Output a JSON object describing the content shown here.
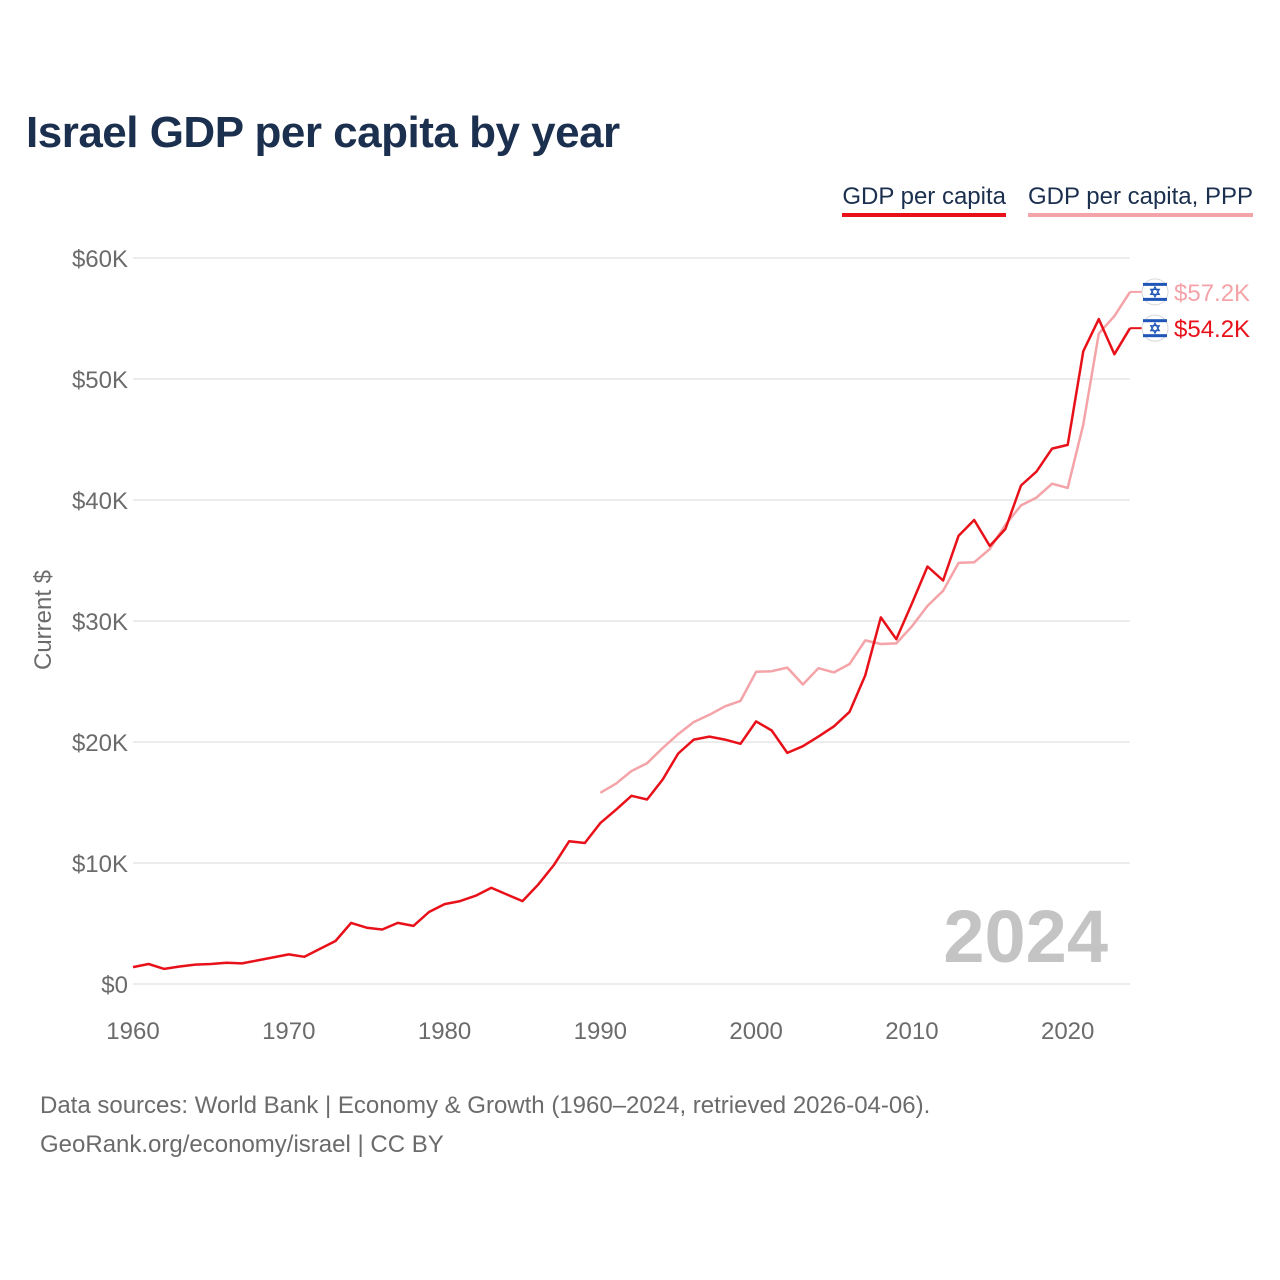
{
  "title": "Israel GDP per capita by year",
  "legend": [
    "GDP per capita",
    "GDP per capita, PPP"
  ],
  "source": {
    "line1": "Data sources: World Bank | Economy & Growth (1960–2024, retrieved 2026-04-06).",
    "line2": "GeoRank.org/economy/israel | CC BY"
  },
  "chart_data": {
    "type": "line",
    "title": "Israel GDP per capita by year",
    "xlabel": "",
    "ylabel": "Current $",
    "xlim": [
      1960,
      2024
    ],
    "ylim": [
      0,
      60000
    ],
    "x_ticks": [
      1960,
      1970,
      1980,
      1990,
      2000,
      2010,
      2020
    ],
    "x_tick_labels": [
      "1960",
      "1970",
      "1980",
      "1990",
      "2000",
      "2010",
      "2020"
    ],
    "y_ticks": [
      0,
      10000,
      20000,
      30000,
      40000,
      50000,
      60000
    ],
    "y_tick_labels": [
      "$0",
      "$10K",
      "$20K",
      "$30K",
      "$40K",
      "$50K",
      "$60K"
    ],
    "grid": true,
    "legend_position": "top-right",
    "watermark_year": "2024",
    "colors": {
      "gdp": "#e8111a",
      "ppp": "#f4a3a8",
      "title": "#1b2f4e",
      "grid": "#e6e6e6",
      "axis_text": "#6b6b6b",
      "watermark": "#c4c4c4",
      "flag_blue": "#1f56b8"
    },
    "series": [
      {
        "name": "GDP per capita",
        "key": "gdp",
        "end_label": "$54.2K",
        "x": [
          1960,
          1961,
          1962,
          1963,
          1964,
          1965,
          1966,
          1967,
          1968,
          1969,
          1970,
          1971,
          1972,
          1973,
          1974,
          1975,
          1976,
          1977,
          1978,
          1979,
          1980,
          1981,
          1982,
          1983,
          1984,
          1985,
          1986,
          1987,
          1988,
          1989,
          1990,
          1991,
          1992,
          1993,
          1994,
          1995,
          1996,
          1997,
          1998,
          1999,
          2000,
          2001,
          2002,
          2003,
          2004,
          2005,
          2006,
          2007,
          2008,
          2009,
          2010,
          2011,
          2012,
          2013,
          2014,
          2015,
          2016,
          2017,
          2018,
          2019,
          2020,
          2021,
          2022,
          2023,
          2024
        ],
        "values": [
          1400,
          1650,
          1250,
          1450,
          1600,
          1650,
          1750,
          1700,
          1950,
          2200,
          2450,
          2250,
          2900,
          3550,
          5050,
          4650,
          4500,
          5050,
          4800,
          5950,
          6600,
          6850,
          7300,
          7950,
          7400,
          6850,
          8200,
          9800,
          11800,
          11650,
          13300,
          14400,
          15550,
          15250,
          16900,
          19050,
          20200,
          20450,
          20200,
          19850,
          21700,
          20950,
          19100,
          19650,
          20450,
          21300,
          22500,
          25500,
          30300,
          28500,
          31450,
          34500,
          33350,
          37050,
          38350,
          36200,
          37600,
          41200,
          42350,
          44250,
          44550,
          52300,
          54950,
          52050,
          54200
        ]
      },
      {
        "name": "GDP per capita, PPP",
        "key": "ppp",
        "end_label": "$57.2K",
        "x": [
          1990,
          1991,
          1992,
          1993,
          1994,
          1995,
          1996,
          1997,
          1998,
          1999,
          2000,
          2001,
          2002,
          2003,
          2004,
          2005,
          2006,
          2007,
          2008,
          2009,
          2010,
          2011,
          2012,
          2013,
          2014,
          2015,
          2016,
          2017,
          2018,
          2019,
          2020,
          2021,
          2022,
          2023,
          2024
        ],
        "values": [
          15800,
          16550,
          17600,
          18250,
          19500,
          20650,
          21650,
          22250,
          22950,
          23400,
          25800,
          25850,
          26150,
          24750,
          26100,
          25750,
          26450,
          28400,
          28100,
          28150,
          29550,
          31250,
          32500,
          34800,
          34850,
          35950,
          37950,
          39550,
          40200,
          41350,
          41000,
          46250,
          53750,
          55200,
          57200
        ]
      }
    ]
  }
}
